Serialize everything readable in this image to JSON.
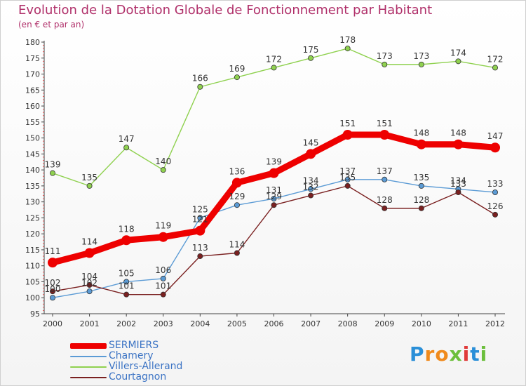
{
  "chart_data": {
    "type": "line",
    "title": "Evolution de la Dotation Globale de Fonctionnement par Habitant",
    "subtitle": "(en € et par an)",
    "xlabel": "",
    "ylabel": "",
    "ylim": [
      95,
      180
    ],
    "ytick_step": 5,
    "grid": false,
    "categories": [
      "2000",
      "2001",
      "2002",
      "2003",
      "2004",
      "2005",
      "2006",
      "2007",
      "2008",
      "2009",
      "2010",
      "2011",
      "2012"
    ],
    "series": [
      {
        "name": "SERMIERS",
        "color": "#ee0000",
        "emphasis": "thick",
        "values": [
          111,
          114,
          118,
          119,
          121,
          136,
          139,
          145,
          151,
          151,
          148,
          148,
          147
        ],
        "labels": [
          "111",
          "114",
          "118",
          "119",
          "121",
          "136",
          "139",
          "145",
          "151",
          "151",
          "148",
          "148",
          "147"
        ]
      },
      {
        "name": "Chamery",
        "color": "#5b9bd5",
        "emphasis": "thin",
        "values": [
          100,
          102,
          105,
          106,
          125,
          129,
          131,
          134,
          137,
          137,
          135,
          134,
          133
        ],
        "labels": [
          "100",
          "102",
          "105",
          "106",
          "125",
          "129",
          "131",
          "134",
          "137",
          "137",
          "135",
          "134",
          "133"
        ]
      },
      {
        "name": "Villers-Allerand",
        "color": "#8fd14f",
        "emphasis": "thin",
        "values": [
          139,
          135,
          147,
          140,
          166,
          169,
          172,
          175,
          178,
          173,
          173,
          174,
          172
        ],
        "labels": [
          "139",
          "135",
          "147",
          "140",
          "166",
          "169",
          "172",
          "175",
          "178",
          "173",
          "173",
          "174",
          "172"
        ]
      },
      {
        "name": "Courtagnon",
        "color": "#7a2020",
        "emphasis": "thin",
        "values": [
          102,
          104,
          101,
          101,
          113,
          114,
          129,
          132,
          135,
          128,
          128,
          133,
          126
        ],
        "labels": [
          "102",
          "104",
          "101",
          "101",
          "113",
          "114",
          "129",
          "132",
          "135",
          "128",
          "128",
          "133",
          "126"
        ]
      }
    ],
    "legend_position": "bottom-left"
  },
  "brand": {
    "letters": [
      "P",
      "r",
      "o",
      "x",
      "i",
      "t",
      "i"
    ],
    "colors": [
      "#2a8fd8",
      "#f08a1c",
      "#f08a1c",
      "#6cbf3c",
      "#e03a3a",
      "#2a8fd8",
      "#6cbf3c"
    ]
  }
}
